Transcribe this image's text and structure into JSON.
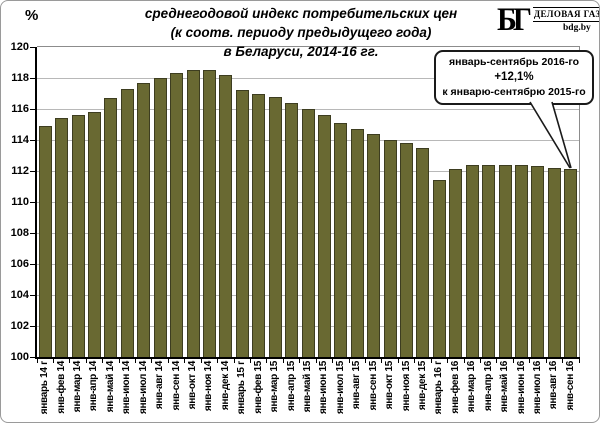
{
  "header": {
    "title_line1": "среднегодовой индекс потребительских цен",
    "title_line2": "(к соотв. периоду предыдущего года)",
    "title_line3": "в Беларуси, 2014-16 гг."
  },
  "logo": {
    "monogram": "БГ",
    "name": "ДЕЛОВАЯ ГАЗЕТА",
    "site": "bdg.by"
  },
  "callout": {
    "line1": "январь-сентябрь 2016-го",
    "line2": "+12,1%",
    "line3": "к январю-сентябрю 2015-го"
  },
  "chart_data": {
    "type": "bar",
    "title": "среднегодовой индекс потребительских цен (к соотв. периоду предыдущего года) в Беларуси, 2014-16 гг.",
    "ylabel": "%",
    "xlabel": "",
    "ylim": [
      100,
      120
    ],
    "yticks": [
      100,
      102,
      104,
      106,
      108,
      110,
      112,
      114,
      116,
      118,
      120
    ],
    "grid": true,
    "legend": false,
    "annotation": "январь-сентябрь 2016-го +12,1% к январю-сентябрю 2015-го (указывает на последний столбец)",
    "bar_color": "#696932",
    "bar_border_color": "#3d3d20",
    "categories": [
      "январь 14 г",
      "янв-фев 14",
      "янв-мар 14",
      "янв-апр 14",
      "янв-май 14",
      "янв-июн 14",
      "янв-июл 14",
      "янв-авг 14",
      "янв-сен 14",
      "янв-окт 14",
      "янв-ноя 14",
      "янв-дек 14",
      "январь 15 г",
      "янв-фев 15",
      "янв-мар 15",
      "янв-апр 15",
      "янв-май 15",
      "янв-июн 15",
      "янв-июл 15",
      "янв-авг 15",
      "янв-сен 15",
      "янв-окт 15",
      "янв-ноя 15",
      "янв-дек 15",
      "январь 16 г",
      "янв-фев 16",
      "янв-мар 16",
      "янв-апр 16",
      "янв-май 16",
      "янв-июн 16",
      "янв-июл 16",
      "янв-авг 16",
      "янв-сен 16"
    ],
    "values": [
      114.9,
      115.4,
      115.6,
      115.8,
      116.7,
      117.3,
      117.7,
      118.0,
      118.3,
      118.5,
      118.5,
      118.2,
      117.2,
      117.0,
      116.8,
      116.4,
      116.0,
      115.6,
      115.1,
      114.7,
      114.4,
      114.0,
      113.8,
      113.5,
      111.4,
      112.1,
      112.4,
      112.4,
      112.4,
      112.4,
      112.3,
      112.2,
      112.1
    ]
  }
}
